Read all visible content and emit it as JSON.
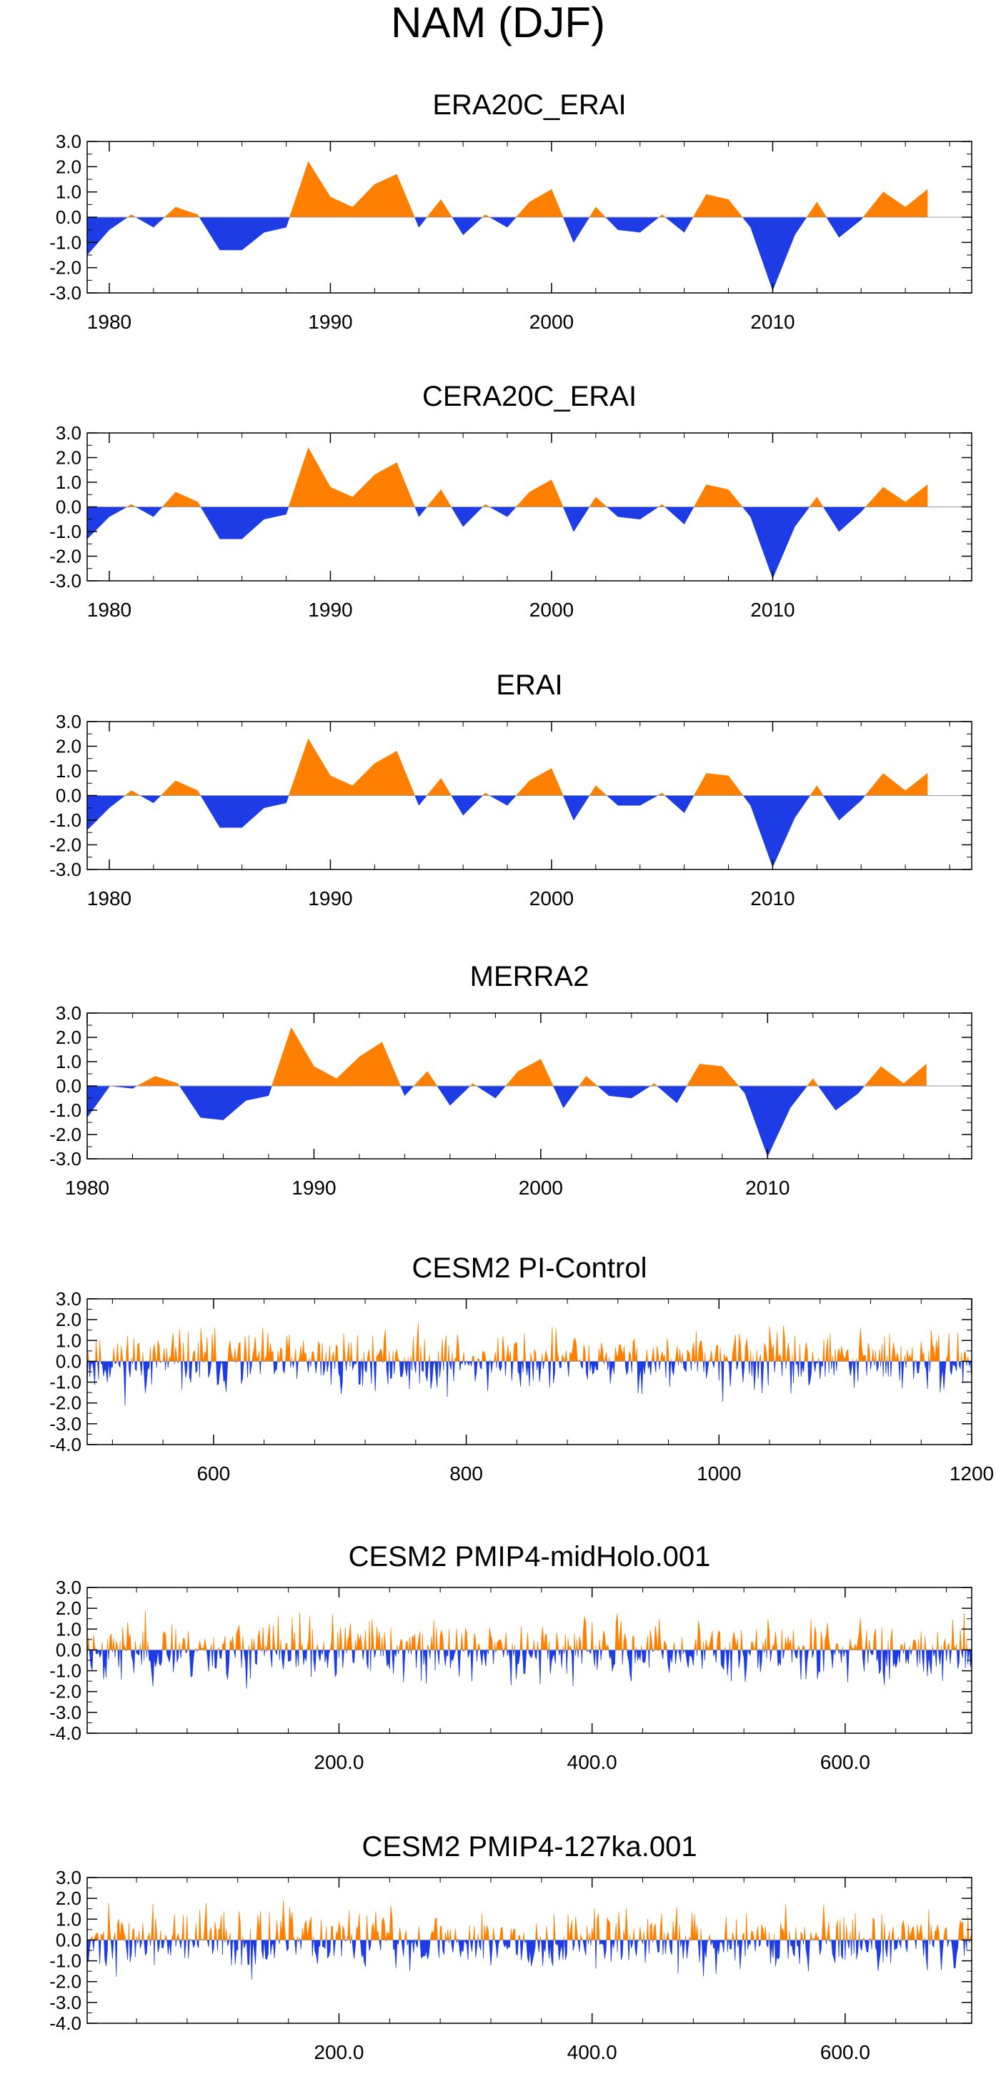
{
  "figure_title": "NAM (DJF)",
  "colors": {
    "positive": "#ff8000",
    "negative": "#1e3ce6",
    "axis": "#000000"
  },
  "chart_data": [
    {
      "type": "area",
      "title": "ERA20C_ERAI",
      "x": [
        1979,
        1980,
        1981,
        1982,
        1983,
        1984,
        1985,
        1986,
        1987,
        1988,
        1989,
        1990,
        1991,
        1992,
        1993,
        1994,
        1995,
        1996,
        1997,
        1998,
        1999,
        2000,
        2001,
        2002,
        2003,
        2004,
        2005,
        2006,
        2007,
        2008,
        2009,
        2010,
        2011,
        2012,
        2013,
        2014,
        2015,
        2016,
        2017
      ],
      "values": [
        -1.5,
        -0.5,
        0.1,
        -0.4,
        0.4,
        0.1,
        -1.3,
        -1.3,
        -0.6,
        -0.4,
        2.2,
        0.8,
        0.4,
        1.3,
        1.7,
        -0.4,
        0.7,
        -0.7,
        0.1,
        -0.4,
        0.6,
        1.1,
        -1.0,
        0.4,
        -0.5,
        -0.6,
        0.1,
        -0.6,
        0.9,
        0.7,
        -0.4,
        -2.9,
        -0.7,
        0.6,
        -0.8,
        -0.1,
        1.0,
        0.4,
        1.1
      ],
      "xlim": [
        1979,
        2019
      ],
      "ylim": [
        -3.0,
        3.0
      ],
      "yticks": [
        "3.0",
        "2.0",
        "1.0",
        "0.0",
        "-1.0",
        "-2.0",
        "-3.0"
      ],
      "xticks": [
        "1980",
        "1990",
        "2000",
        "2010"
      ]
    },
    {
      "type": "area",
      "title": "CERA20C_ERAI",
      "x": [
        1979,
        1980,
        1981,
        1982,
        1983,
        1984,
        1985,
        1986,
        1987,
        1988,
        1989,
        1990,
        1991,
        1992,
        1993,
        1994,
        1995,
        1996,
        1997,
        1998,
        1999,
        2000,
        2001,
        2002,
        2003,
        2004,
        2005,
        2006,
        2007,
        2008,
        2009,
        2010,
        2011,
        2012,
        2013,
        2014,
        2015,
        2016,
        2017
      ],
      "values": [
        -1.3,
        -0.4,
        0.1,
        -0.4,
        0.6,
        0.2,
        -1.3,
        -1.3,
        -0.5,
        -0.3,
        2.4,
        0.8,
        0.4,
        1.3,
        1.8,
        -0.4,
        0.7,
        -0.8,
        0.1,
        -0.4,
        0.6,
        1.1,
        -1.0,
        0.4,
        -0.4,
        -0.5,
        0.1,
        -0.7,
        0.9,
        0.7,
        -0.4,
        -2.9,
        -0.8,
        0.4,
        -1.0,
        -0.2,
        0.8,
        0.2,
        0.9
      ],
      "xlim": [
        1979,
        2019
      ],
      "ylim": [
        -3.0,
        3.0
      ],
      "yticks": [
        "3.0",
        "2.0",
        "1.0",
        "0.0",
        "-1.0",
        "-2.0",
        "-3.0"
      ],
      "xticks": [
        "1980",
        "1990",
        "2000",
        "2010"
      ]
    },
    {
      "type": "area",
      "title": "ERAI",
      "x": [
        1979,
        1980,
        1981,
        1982,
        1983,
        1984,
        1985,
        1986,
        1987,
        1988,
        1989,
        1990,
        1991,
        1992,
        1993,
        1994,
        1995,
        1996,
        1997,
        1998,
        1999,
        2000,
        2001,
        2002,
        2003,
        2004,
        2005,
        2006,
        2007,
        2008,
        2009,
        2010,
        2011,
        2012,
        2013,
        2014,
        2015,
        2016,
        2017
      ],
      "values": [
        -1.4,
        -0.5,
        0.2,
        -0.3,
        0.6,
        0.2,
        -1.3,
        -1.3,
        -0.5,
        -0.3,
        2.3,
        0.8,
        0.4,
        1.3,
        1.8,
        -0.4,
        0.7,
        -0.8,
        0.1,
        -0.4,
        0.6,
        1.1,
        -1.0,
        0.4,
        -0.4,
        -0.4,
        0.1,
        -0.7,
        0.9,
        0.8,
        -0.4,
        -2.9,
        -0.9,
        0.4,
        -1.0,
        -0.2,
        0.9,
        0.2,
        0.9
      ],
      "xlim": [
        1979,
        2019
      ],
      "ylim": [
        -3.0,
        3.0
      ],
      "yticks": [
        "3.0",
        "2.0",
        "1.0",
        "0.0",
        "-1.0",
        "-2.0",
        "-3.0"
      ],
      "xticks": [
        "1980",
        "1990",
        "2000",
        "2010"
      ]
    },
    {
      "type": "area",
      "title": "MERRA2",
      "x": [
        1980,
        1981,
        1982,
        1983,
        1984,
        1985,
        1986,
        1987,
        1988,
        1989,
        1990,
        1991,
        1992,
        1993,
        1994,
        1995,
        1996,
        1997,
        1998,
        1999,
        2000,
        2001,
        2002,
        2003,
        2004,
        2005,
        2006,
        2007,
        2008,
        2009,
        2010,
        2011,
        2012,
        2013,
        2014,
        2015,
        2016,
        2017
      ],
      "values": [
        -1.3,
        0.0,
        -0.1,
        0.4,
        0.1,
        -1.3,
        -1.4,
        -0.6,
        -0.4,
        2.4,
        0.8,
        0.3,
        1.2,
        1.8,
        -0.4,
        0.6,
        -0.8,
        0.1,
        -0.5,
        0.6,
        1.1,
        -0.9,
        0.4,
        -0.4,
        -0.5,
        0.1,
        -0.7,
        0.9,
        0.8,
        -0.3,
        -2.9,
        -0.9,
        0.3,
        -1.0,
        -0.3,
        0.8,
        0.1,
        0.9
      ],
      "xlim": [
        1980,
        2019
      ],
      "ylim": [
        -3.0,
        3.0
      ],
      "yticks": [
        "3.0",
        "2.0",
        "1.0",
        "0.0",
        "-1.0",
        "-2.0",
        "-3.0"
      ],
      "xticks": [
        "1980",
        "1990",
        "2000",
        "2010"
      ]
    },
    {
      "type": "area",
      "title": "CESM2 PI-Control",
      "x_start": 500,
      "x_end": 1200,
      "seed": 11,
      "xlim": [
        500,
        1200
      ],
      "ylim": [
        -4.0,
        3.0
      ],
      "yticks": [
        "3.0",
        "2.0",
        "1.0",
        "0.0",
        "-1.0",
        "-2.0",
        "-3.0",
        "-4.0"
      ],
      "xticks": [
        "600",
        "800",
        "1000",
        "1200"
      ]
    },
    {
      "type": "area",
      "title": "CESM2 PMIP4-midHolo.001",
      "x_start": 1,
      "x_end": 700,
      "seed": 23,
      "xlim": [
        1,
        700
      ],
      "ylim": [
        -4.0,
        3.0
      ],
      "yticks": [
        "3.0",
        "2.0",
        "1.0",
        "0.0",
        "-1.0",
        "-2.0",
        "-3.0",
        "-4.0"
      ],
      "xticks": [
        "200.0",
        "400.0",
        "600.0"
      ]
    },
    {
      "type": "area",
      "title": "CESM2 PMIP4-127ka.001",
      "x_start": 1,
      "x_end": 700,
      "seed": 37,
      "xlim": [
        1,
        700
      ],
      "ylim": [
        -4.0,
        3.0
      ],
      "yticks": [
        "3.0",
        "2.0",
        "1.0",
        "0.0",
        "-1.0",
        "-2.0",
        "-3.0",
        "-4.0"
      ],
      "xticks": [
        "200.0",
        "400.0",
        "600.0"
      ]
    }
  ]
}
